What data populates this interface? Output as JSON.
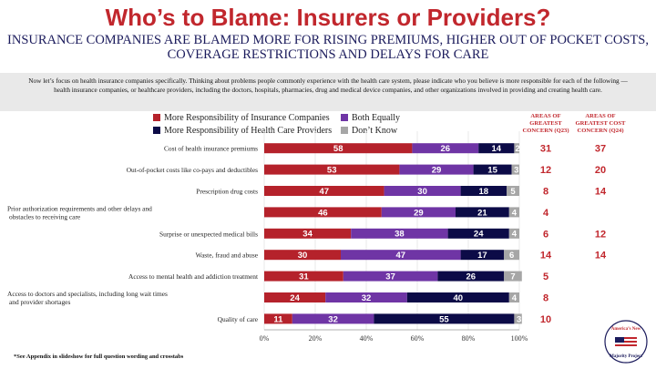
{
  "title": "Who’s to Blame: Insurers or Providers?",
  "subtitle": "INSURANCE COMPANIES ARE BLAMED MORE FOR RISING PREMIUMS, HIGHER OUT OF POCKET COSTS, COVERAGE RESTRICTIONS AND DELAYS FOR CARE",
  "intro": "Now let’s focus on health insurance companies specifically. Thinking about problems people commonly experience with the health care system, please indicate who you believe is more responsible for each of the following — health insurance companies, or healthcare providers, including the doctors, hospitals, pharmacies, drug and medical device companies, and other organizations involved in providing and creating health care.",
  "footnote": "*See Appendix in slideshow for full question wording and crosstabs",
  "logo_text": "America’s New Majority Project",
  "col_headers": {
    "concern": "AREAS OF GREATEST CONCERN (Q23)",
    "cost": "AREAS OF GREATEST COST CONCERN (Q24)"
  },
  "colors": {
    "insurance": "#b5222b",
    "both": "#6f35a5",
    "providers": "#0c0b47",
    "dontknow": "#a6a6a6",
    "accent": "#c1272d"
  },
  "chart_data": {
    "type": "bar",
    "orientation": "horizontal",
    "stacked": true,
    "xlim": [
      0,
      100
    ],
    "x_ticks": [
      "0%",
      "20%",
      "40%",
      "60%",
      "80%",
      "100%"
    ],
    "legend": [
      "More Responsibility of Insurance Companies",
      "Both Equally",
      "More Responsibility of Health Care Providers",
      "Don’t Know"
    ],
    "categories": [
      "Cost of health insurance premiums",
      "Out-of-pocket costs like co-pays and deductibles",
      "Prescription drug costs",
      "Prior authorization requirements and other delays and obstacles to receiving care",
      "Surprise or unexpected medical bills",
      "Waste, fraud and abuse",
      "Access to mental health and addiction treatment",
      "Access to doctors and specialists, including long wait times and provider shortages",
      "Quality of care"
    ],
    "series": [
      {
        "name": "More Responsibility of Insurance Companies",
        "values": [
          58,
          53,
          47,
          46,
          34,
          30,
          31,
          24,
          11
        ]
      },
      {
        "name": "Both Equally",
        "values": [
          26,
          29,
          30,
          29,
          38,
          47,
          37,
          32,
          32
        ]
      },
      {
        "name": "More Responsibility of Health Care Providers",
        "values": [
          14,
          15,
          18,
          21,
          24,
          17,
          26,
          40,
          55
        ]
      },
      {
        "name": "Don’t Know",
        "values": [
          2,
          3,
          5,
          4,
          4,
          6,
          7,
          4,
          3
        ]
      }
    ],
    "concern_q23": [
      "31",
      "12",
      "8",
      "4",
      "6",
      "14",
      "5",
      "8",
      "10"
    ],
    "cost_concern_q24": [
      "37",
      "20",
      "14",
      "",
      "12",
      "14",
      "",
      "",
      ""
    ]
  }
}
